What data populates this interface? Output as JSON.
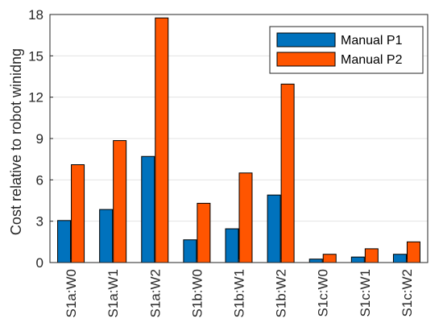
{
  "chart_data": {
    "type": "bar",
    "title": "",
    "xlabel": "",
    "ylabel": "Cost relative to robot winidng",
    "categories": [
      "S1a:W0",
      "S1a:W1",
      "S1a:W2",
      "S1b:W0",
      "S1b:W1",
      "S1b:W2",
      "S1c:W0",
      "S1c:W1",
      "S1c:W2"
    ],
    "series": [
      {
        "name": "Manual P1",
        "color": "#0072BD",
        "values": [
          3.05,
          3.85,
          7.7,
          1.65,
          2.45,
          4.9,
          0.25,
          0.4,
          0.6
        ]
      },
      {
        "name": "Manual P2",
        "color": "#FF5500",
        "values": [
          7.1,
          8.85,
          17.75,
          4.3,
          6.5,
          12.95,
          0.6,
          1.0,
          1.5
        ]
      }
    ],
    "ylim": [
      0,
      18
    ],
    "yticks": [
      "0",
      "3",
      "6",
      "9",
      "12",
      "15",
      "18"
    ],
    "grid": true,
    "legend_position": "top-right"
  }
}
